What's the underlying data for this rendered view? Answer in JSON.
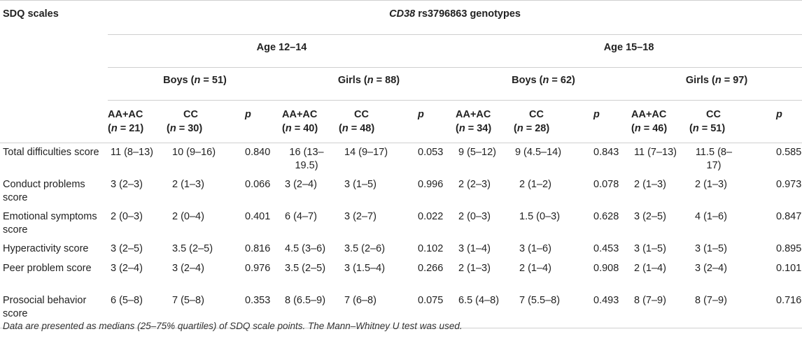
{
  "header": {
    "col0": "SDQ scales",
    "genotype_gene": "CD38",
    "genotype_rest": " rs3796863 genotypes",
    "age_groups": [
      "Age 12–14",
      "Age 15–18"
    ],
    "sex_groups": [
      {
        "label": "Boys",
        "n": "51"
      },
      {
        "label": "Girls",
        "n": "88"
      },
      {
        "label": "Boys",
        "n": "62"
      },
      {
        "label": "Girls",
        "n": "97"
      }
    ],
    "subcols": [
      {
        "geno": "AA+AC",
        "n": "21"
      },
      {
        "geno": "CC",
        "n": "30"
      },
      {
        "geno": "AA+AC",
        "n": "40"
      },
      {
        "geno": "CC",
        "n": "48"
      },
      {
        "geno": "AA+AC",
        "n": "34"
      },
      {
        "geno": "CC",
        "n": "28"
      },
      {
        "geno": "AA+AC",
        "n": "46"
      },
      {
        "geno": "CC",
        "n": "51"
      }
    ],
    "p_label": "p",
    "n_label": "n",
    "n_prefix": "(",
    "n_eq": " = ",
    "n_suffix": ")"
  },
  "rows": [
    {
      "label": "Total difficulties score",
      "cells": [
        "11 (8–13)",
        "10 (9–16)",
        "0.840",
        "16 (13–19.5)",
        "14 (9–17)",
        "0.053",
        "9 (5–12)",
        "9 (4.5–14)",
        "0.843",
        "11 (7–13)",
        "11.5 (8–17)",
        "0.585"
      ]
    },
    {
      "label": "Conduct problems score",
      "cells": [
        "3 (2–3)",
        "2 (1–3)",
        "0.066",
        "3 (2–4)",
        "3 (1–5)",
        "0.996",
        "2 (2–3)",
        "2 (1–2)",
        "0.078",
        "2 (1–3)",
        "2 (1–3)",
        "0.973"
      ]
    },
    {
      "label": "Emotional symptoms score",
      "cells": [
        "2 (0–3)",
        "2 (0–4)",
        "0.401",
        "6 (4–7)",
        "3 (2–7)",
        "0.022",
        "2 (0–3)",
        "1.5 (0–3)",
        "0.628",
        "3 (2–5)",
        "4 (1–6)",
        "0.847"
      ]
    },
    {
      "label": "Hyperactivity score",
      "cells": [
        "3 (2–5)",
        "3.5 (2–5)",
        "0.816",
        "4.5 (3–6)",
        "3.5 (2–6)",
        "0.102",
        "3 (1–4)",
        "3 (1–6)",
        "0.453",
        "3 (1–5)",
        "3 (1–5)",
        "0.895"
      ]
    },
    {
      "label": "Peer problem score",
      "cells": [
        "3 (2–4)",
        "3 (2–4)",
        "0.976",
        "3.5 (2–5)",
        "3 (1.5–4)",
        "0.266",
        "2 (1–3)",
        "2 (1–4)",
        "0.908",
        "2 (1–4)",
        "3 (2–4)",
        "0.101"
      ]
    },
    {
      "label": "Prosocial behavior score",
      "cells": [
        "6 (5–8)",
        "7 (5–8)",
        "0.353",
        "8 (6.5–9)",
        "7 (6–8)",
        "0.075",
        "6.5 (4–8)",
        "7 (5.5–8)",
        "0.493",
        "8 (7–9)",
        "8 (7–9)",
        "0.716"
      ]
    }
  ],
  "footnote": "Data are presented as medians (25–75% quartiles) of SDQ scale points. The Mann–Whitney U test was used."
}
